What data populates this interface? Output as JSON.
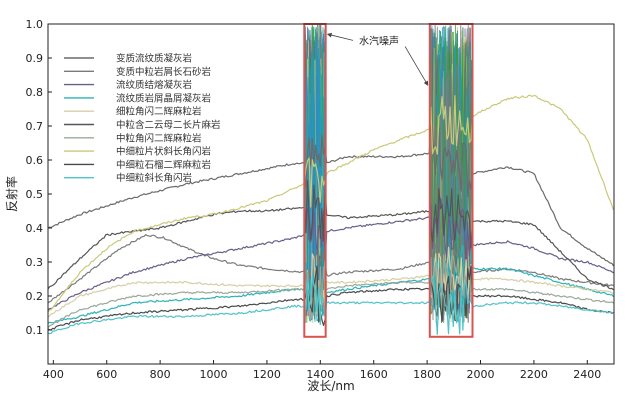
{
  "chart_data": {
    "type": "line",
    "title": "",
    "xlabel": "波长/nm",
    "ylabel": "反射率",
    "xlim": [
      380,
      2500
    ],
    "ylim": [
      0,
      1.0
    ],
    "x_ticks": [
      400,
      600,
      800,
      1000,
      1200,
      1400,
      1600,
      1800,
      2000,
      2200,
      2400
    ],
    "y_ticks": [
      0.1,
      0.2,
      0.3,
      0.4,
      0.5,
      0.6,
      0.7,
      0.8,
      0.9,
      1.0
    ],
    "grid": false,
    "legend_position": "top-left",
    "annotation": {
      "text": "水汽噪声",
      "regions": [
        [
          1340,
          1420
        ],
        [
          1810,
          1970
        ]
      ],
      "color": "#d9534f"
    },
    "series": [
      {
        "name": "变质流纹质凝灰岩",
        "color": "#6a6a6a",
        "points": [
          [
            380,
            0.4
          ],
          [
            500,
            0.44
          ],
          [
            700,
            0.49
          ],
          [
            900,
            0.53
          ],
          [
            1100,
            0.56
          ],
          [
            1300,
            0.59
          ],
          [
            1340,
            0.59
          ],
          [
            1420,
            0.59
          ],
          [
            1500,
            0.61
          ],
          [
            1700,
            0.61
          ],
          [
            1810,
            0.62
          ],
          [
            1970,
            0.56
          ],
          [
            2100,
            0.58
          ],
          [
            2200,
            0.56
          ],
          [
            2300,
            0.4
          ],
          [
            2400,
            0.34
          ],
          [
            2500,
            0.29
          ]
        ]
      },
      {
        "name": "变质中粒岩屑长石砂岩",
        "color": "#7a7a7a",
        "points": [
          [
            380,
            0.18
          ],
          [
            500,
            0.25
          ],
          [
            650,
            0.34
          ],
          [
            750,
            0.38
          ],
          [
            820,
            0.37
          ],
          [
            900,
            0.34
          ],
          [
            1000,
            0.31
          ],
          [
            1100,
            0.29
          ],
          [
            1200,
            0.28
          ],
          [
            1340,
            0.27
          ],
          [
            1420,
            0.26
          ],
          [
            1500,
            0.27
          ],
          [
            1700,
            0.28
          ],
          [
            1810,
            0.3
          ],
          [
            1970,
            0.27
          ],
          [
            2100,
            0.28
          ],
          [
            2200,
            0.27
          ],
          [
            2300,
            0.25
          ],
          [
            2400,
            0.24
          ],
          [
            2500,
            0.23
          ]
        ]
      },
      {
        "name": "流纹质结熔凝灰岩",
        "color": "#6b5d8a",
        "points": [
          [
            380,
            0.16
          ],
          [
            500,
            0.21
          ],
          [
            700,
            0.27
          ],
          [
            900,
            0.31
          ],
          [
            1100,
            0.34
          ],
          [
            1300,
            0.37
          ],
          [
            1340,
            0.38
          ],
          [
            1420,
            0.39
          ],
          [
            1500,
            0.4
          ],
          [
            1700,
            0.42
          ],
          [
            1810,
            0.43
          ],
          [
            1970,
            0.35
          ],
          [
            2100,
            0.36
          ],
          [
            2200,
            0.34
          ],
          [
            2300,
            0.31
          ],
          [
            2400,
            0.3
          ],
          [
            2500,
            0.27
          ]
        ]
      },
      {
        "name": "流纹质岩屑晶屑凝灰岩",
        "color": "#2bb3b8",
        "points": [
          [
            380,
            0.12
          ],
          [
            500,
            0.14
          ],
          [
            700,
            0.18
          ],
          [
            900,
            0.19
          ],
          [
            1100,
            0.2
          ],
          [
            1300,
            0.22
          ],
          [
            1340,
            0.22
          ],
          [
            1420,
            0.21
          ],
          [
            1500,
            0.22
          ],
          [
            1700,
            0.24
          ],
          [
            1810,
            0.25
          ],
          [
            1970,
            0.28
          ],
          [
            2100,
            0.28
          ],
          [
            2200,
            0.26
          ],
          [
            2300,
            0.24
          ],
          [
            2400,
            0.22
          ],
          [
            2500,
            0.2
          ]
        ]
      },
      {
        "name": "细粒角闪二辉麻粒岩",
        "color": "#d6cfa6",
        "points": [
          [
            380,
            0.14
          ],
          [
            500,
            0.2
          ],
          [
            700,
            0.24
          ],
          [
            900,
            0.24
          ],
          [
            1100,
            0.23
          ],
          [
            1300,
            0.23
          ],
          [
            1340,
            0.23
          ],
          [
            1420,
            0.24
          ],
          [
            1500,
            0.24
          ],
          [
            1700,
            0.25
          ],
          [
            1810,
            0.26
          ],
          [
            1970,
            0.25
          ],
          [
            2100,
            0.25
          ],
          [
            2200,
            0.24
          ],
          [
            2300,
            0.23
          ],
          [
            2400,
            0.22
          ],
          [
            2500,
            0.21
          ]
        ]
      },
      {
        "name": "中粒含二云母二长片麻岩",
        "color": "#555555",
        "points": [
          [
            380,
            0.22
          ],
          [
            500,
            0.31
          ],
          [
            600,
            0.38
          ],
          [
            700,
            0.39
          ],
          [
            800,
            0.4
          ],
          [
            900,
            0.42
          ],
          [
            1000,
            0.44
          ],
          [
            1100,
            0.45
          ],
          [
            1200,
            0.45
          ],
          [
            1340,
            0.46
          ],
          [
            1420,
            0.44
          ],
          [
            1500,
            0.43
          ],
          [
            1700,
            0.44
          ],
          [
            1810,
            0.45
          ],
          [
            1970,
            0.42
          ],
          [
            2100,
            0.42
          ],
          [
            2200,
            0.41
          ],
          [
            2300,
            0.33
          ],
          [
            2400,
            0.25
          ],
          [
            2500,
            0.22
          ]
        ]
      },
      {
        "name": "中粒角闪二辉麻粒岩",
        "color": "#9aa89a",
        "points": [
          [
            380,
            0.11
          ],
          [
            500,
            0.16
          ],
          [
            700,
            0.2
          ],
          [
            900,
            0.21
          ],
          [
            1100,
            0.21
          ],
          [
            1300,
            0.22
          ],
          [
            1340,
            0.22
          ],
          [
            1420,
            0.22
          ],
          [
            1500,
            0.23
          ],
          [
            1700,
            0.24
          ],
          [
            1810,
            0.24
          ],
          [
            1970,
            0.22
          ],
          [
            2100,
            0.22
          ],
          [
            2200,
            0.21
          ],
          [
            2300,
            0.2
          ],
          [
            2400,
            0.19
          ],
          [
            2500,
            0.18
          ]
        ]
      },
      {
        "name": "中细粒片状斜长角闪岩",
        "color": "#c9c97a",
        "points": [
          [
            380,
            0.15
          ],
          [
            500,
            0.27
          ],
          [
            600,
            0.34
          ],
          [
            700,
            0.39
          ],
          [
            800,
            0.41
          ],
          [
            900,
            0.43
          ],
          [
            1000,
            0.44
          ],
          [
            1100,
            0.46
          ],
          [
            1200,
            0.48
          ],
          [
            1340,
            0.53
          ],
          [
            1420,
            0.56
          ],
          [
            1500,
            0.59
          ],
          [
            1600,
            0.63
          ],
          [
            1700,
            0.66
          ],
          [
            1810,
            0.69
          ],
          [
            1970,
            0.73
          ],
          [
            2100,
            0.78
          ],
          [
            2200,
            0.79
          ],
          [
            2300,
            0.75
          ],
          [
            2400,
            0.66
          ],
          [
            2500,
            0.45
          ]
        ]
      },
      {
        "name": "中细粒石榴二辉麻粒岩",
        "color": "#4a4a4a",
        "points": [
          [
            380,
            0.1
          ],
          [
            500,
            0.13
          ],
          [
            700,
            0.15
          ],
          [
            900,
            0.16
          ],
          [
            1100,
            0.17
          ],
          [
            1300,
            0.19
          ],
          [
            1340,
            0.19
          ],
          [
            1420,
            0.2
          ],
          [
            1500,
            0.21
          ],
          [
            1700,
            0.22
          ],
          [
            1810,
            0.22
          ],
          [
            1970,
            0.2
          ],
          [
            2100,
            0.2
          ],
          [
            2200,
            0.19
          ],
          [
            2300,
            0.18
          ],
          [
            2400,
            0.16
          ],
          [
            2500,
            0.15
          ]
        ]
      },
      {
        "name": "中细粒斜长角闪岩",
        "color": "#4fc3c8",
        "points": [
          [
            380,
            0.09
          ],
          [
            500,
            0.12
          ],
          [
            700,
            0.14
          ],
          [
            900,
            0.14
          ],
          [
            1100,
            0.15
          ],
          [
            1300,
            0.17
          ],
          [
            1340,
            0.17
          ],
          [
            1420,
            0.18
          ],
          [
            1500,
            0.18
          ],
          [
            1700,
            0.18
          ],
          [
            1810,
            0.18
          ],
          [
            1970,
            0.17
          ],
          [
            2100,
            0.18
          ],
          [
            2200,
            0.18
          ],
          [
            2300,
            0.17
          ],
          [
            2400,
            0.16
          ],
          [
            2500,
            0.15
          ]
        ]
      }
    ]
  }
}
